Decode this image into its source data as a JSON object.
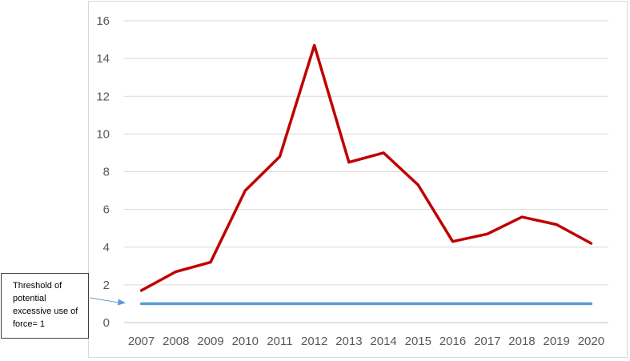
{
  "chart_data": {
    "type": "line",
    "x": [
      "2007",
      "2008",
      "2009",
      "2010",
      "2011",
      "2012",
      "2013",
      "2014",
      "2015",
      "2016",
      "2017",
      "2018",
      "2019",
      "2020"
    ],
    "series": [
      {
        "values": [
          1.7,
          2.7,
          3.2,
          7.0,
          8.8,
          14.7,
          8.5,
          9.0,
          7.3,
          4.3,
          4.7,
          5.6,
          5.2,
          4.2
        ],
        "color": "#c00000"
      },
      {
        "values": [
          1,
          1,
          1,
          1,
          1,
          1,
          1,
          1,
          1,
          1,
          1,
          1,
          1,
          1
        ],
        "color": "#5b9bd5"
      }
    ],
    "ylim": [
      0,
      16
    ],
    "yticks": [
      0,
      2,
      4,
      6,
      8,
      10,
      12,
      14,
      16
    ],
    "grid": true,
    "title": "",
    "xlabel": "",
    "ylabel": "",
    "annotation": {
      "text": "Threshold of potential excessive use of force= 1",
      "arrow_color": "#5b9bd5"
    }
  }
}
